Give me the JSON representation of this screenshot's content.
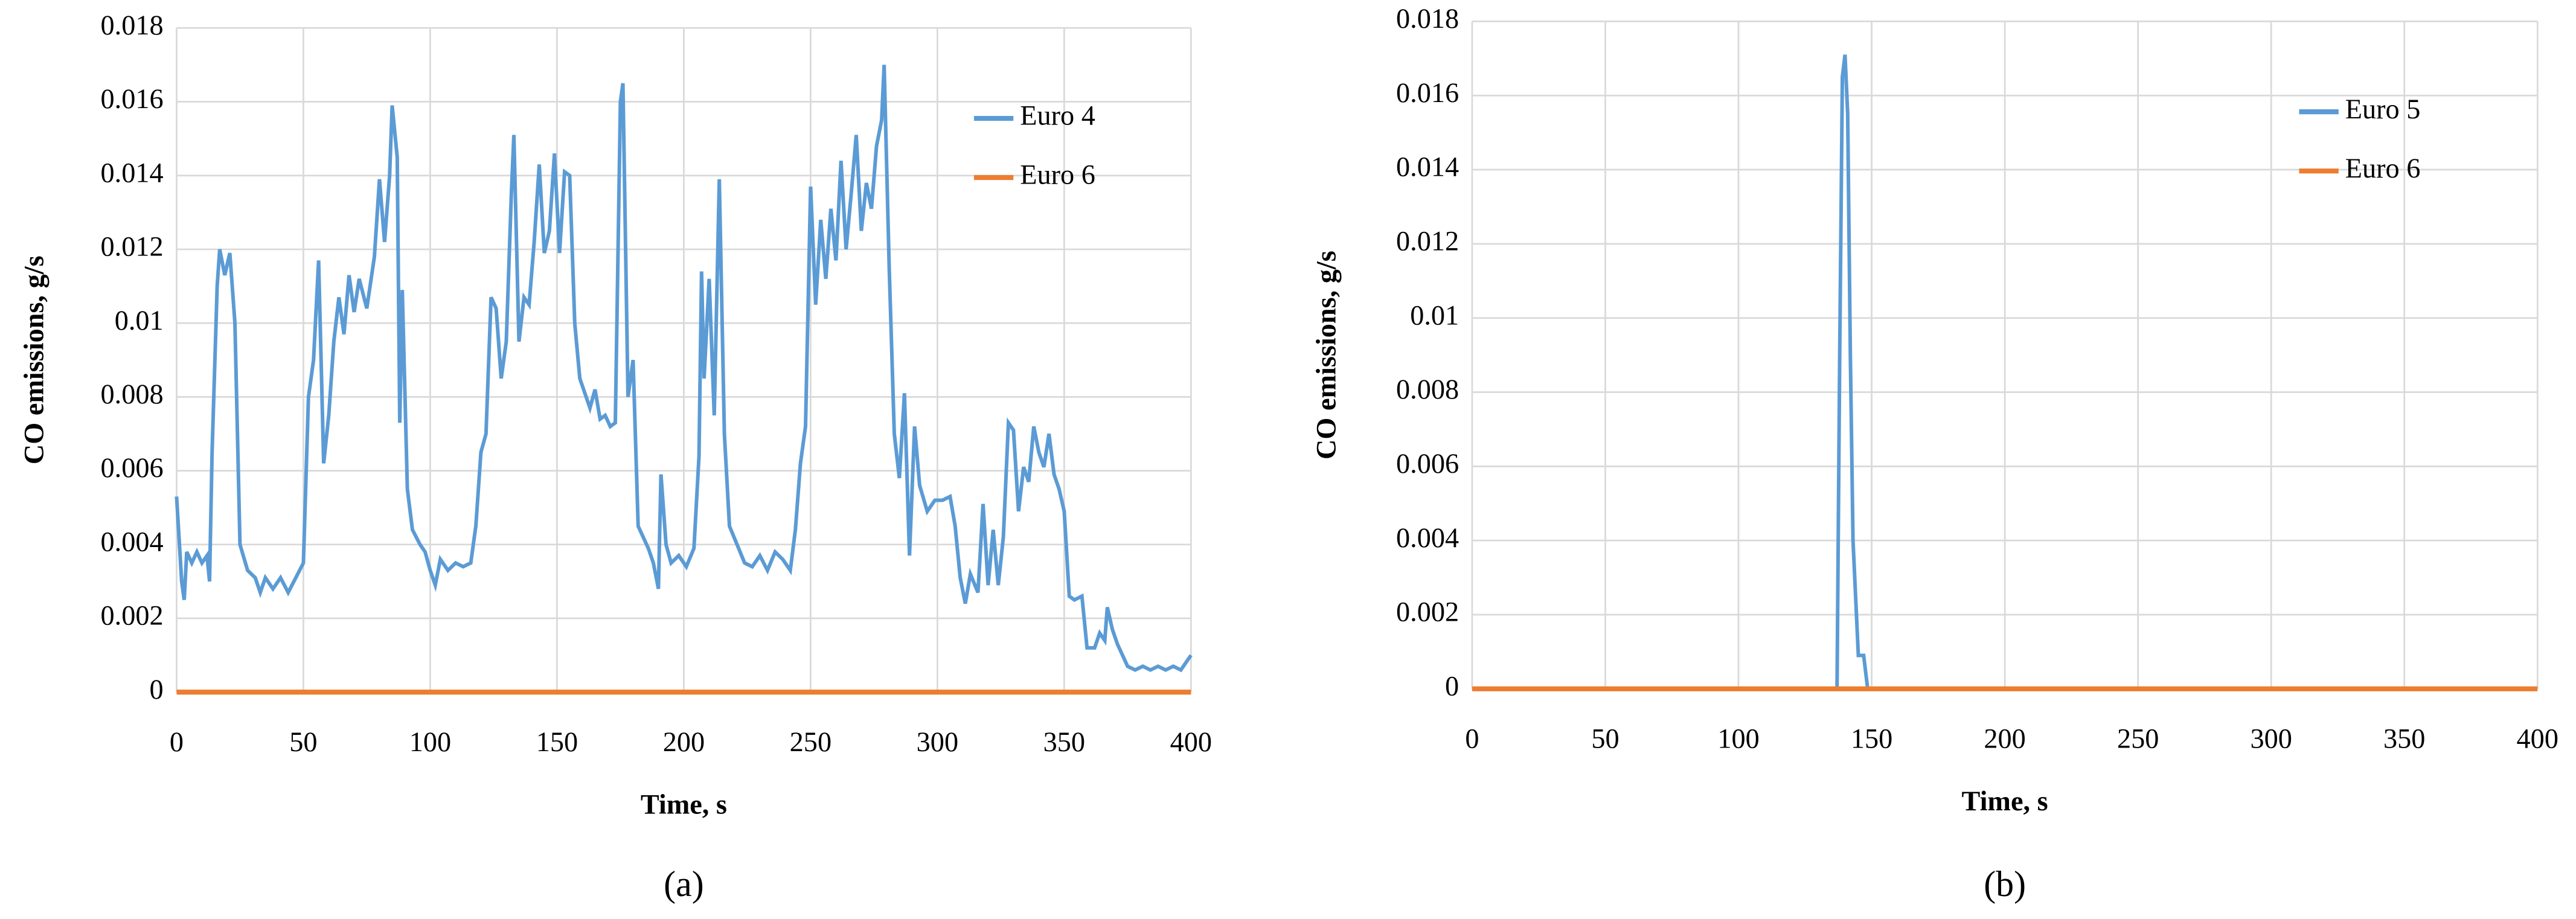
{
  "chart_data": [
    {
      "type": "line",
      "caption": "(a)",
      "xlabel": "Time, s",
      "ylabel": "CO emissions, g/s",
      "xlim": [
        0,
        400
      ],
      "xticks": [
        0,
        50,
        100,
        150,
        200,
        250,
        300,
        350,
        400
      ],
      "ylim": [
        0,
        0.018
      ],
      "yticks": [
        0,
        0.002,
        0.004,
        0.006,
        0.008,
        0.01,
        0.012,
        0.014,
        0.016,
        0.018
      ],
      "grid": true,
      "legend": "top-right",
      "series": [
        {
          "name": "Euro 4",
          "color": "#5b9bd5",
          "x": [
            0,
            2,
            3,
            4,
            6,
            8,
            10,
            12,
            13,
            14,
            16,
            17,
            19,
            21,
            23,
            25,
            28,
            31,
            33,
            35,
            38,
            41,
            44,
            47,
            50,
            52,
            54,
            56,
            58,
            60,
            62,
            64,
            66,
            68,
            70,
            72,
            75,
            78,
            80,
            82,
            84,
            85,
            87,
            88,
            89,
            91,
            93,
            96,
            98,
            100,
            102,
            104,
            107,
            110,
            113,
            116,
            118,
            120,
            122,
            124,
            126,
            128,
            130,
            132,
            133,
            135,
            137,
            139,
            141,
            143,
            145,
            147,
            149,
            151,
            153,
            155,
            157,
            159,
            161,
            163,
            165,
            167,
            169,
            171,
            173,
            175,
            176,
            178,
            180,
            182,
            184,
            186,
            188,
            190,
            191,
            193,
            195,
            198,
            201,
            204,
            206,
            207,
            208,
            210,
            212,
            214,
            216,
            218,
            221,
            224,
            227,
            230,
            233,
            236,
            239,
            242,
            244,
            246,
            248,
            250,
            252,
            254,
            256,
            258,
            260,
            262,
            264,
            266,
            268,
            270,
            272,
            274,
            276,
            278,
            279,
            281,
            283,
            285,
            287,
            289,
            291,
            293,
            296,
            299,
            302,
            305,
            307,
            309,
            311,
            313,
            316,
            318,
            320,
            322,
            324,
            326,
            328,
            330,
            332,
            334,
            336,
            338,
            340,
            342,
            344,
            346,
            348,
            350,
            352,
            354,
            357,
            359,
            362,
            364,
            366,
            367,
            369,
            371,
            373,
            375,
            378,
            381,
            384,
            387,
            390,
            393,
            396,
            398,
            400
          ],
          "values": [
            0.0053,
            0.003,
            0.0025,
            0.0038,
            0.0035,
            0.0038,
            0.0035,
            0.0037,
            0.003,
            0.0065,
            0.011,
            0.012,
            0.0113,
            0.0119,
            0.01,
            0.004,
            0.0033,
            0.0031,
            0.0027,
            0.0031,
            0.0028,
            0.0031,
            0.0027,
            0.0031,
            0.0035,
            0.008,
            0.009,
            0.0117,
            0.0062,
            0.0075,
            0.0095,
            0.0107,
            0.0097,
            0.0113,
            0.0103,
            0.0112,
            0.0104,
            0.0118,
            0.0139,
            0.0122,
            0.014,
            0.0159,
            0.0145,
            0.0073,
            0.0109,
            0.0055,
            0.0044,
            0.004,
            0.0038,
            0.0033,
            0.0029,
            0.0036,
            0.0033,
            0.0035,
            0.0034,
            0.0035,
            0.0045,
            0.0065,
            0.007,
            0.0107,
            0.0104,
            0.0085,
            0.0095,
            0.0135,
            0.0151,
            0.0095,
            0.0107,
            0.0105,
            0.0122,
            0.0143,
            0.0119,
            0.0125,
            0.0146,
            0.0119,
            0.0141,
            0.014,
            0.01,
            0.0085,
            0.0081,
            0.0077,
            0.0082,
            0.0074,
            0.0075,
            0.0072,
            0.0073,
            0.016,
            0.0165,
            0.008,
            0.009,
            0.0045,
            0.0042,
            0.0039,
            0.0035,
            0.0028,
            0.0059,
            0.004,
            0.0035,
            0.0037,
            0.0034,
            0.0039,
            0.0064,
            0.0114,
            0.0085,
            0.0112,
            0.0075,
            0.0139,
            0.007,
            0.0045,
            0.004,
            0.0035,
            0.0034,
            0.0037,
            0.0033,
            0.0038,
            0.0036,
            0.0033,
            0.0044,
            0.0062,
            0.0072,
            0.0137,
            0.0105,
            0.0128,
            0.0112,
            0.0131,
            0.0117,
            0.0144,
            0.012,
            0.0135,
            0.0151,
            0.0125,
            0.0138,
            0.0131,
            0.0148,
            0.0155,
            0.017,
            0.0115,
            0.007,
            0.0058,
            0.0081,
            0.0037,
            0.0072,
            0.0056,
            0.0049,
            0.0052,
            0.0052,
            0.0053,
            0.0045,
            0.0031,
            0.0024,
            0.0032,
            0.0027,
            0.0051,
            0.0029,
            0.0044,
            0.0029,
            0.0042,
            0.0073,
            0.0071,
            0.0049,
            0.0061,
            0.0057,
            0.0072,
            0.0065,
            0.0061,
            0.007,
            0.0059,
            0.0055,
            0.0049,
            0.0026,
            0.0025,
            0.0026,
            0.0012,
            0.0012,
            0.0016,
            0.0014,
            0.0023,
            0.0017,
            0.0013,
            0.001,
            0.0007,
            0.0006,
            0.0007,
            0.0006,
            0.0007,
            0.0006,
            0.0007,
            0.0006,
            0.0008,
            0.001
          ]
        },
        {
          "name": "Euro 6",
          "color": "#ed7d31",
          "x": [
            0,
            400
          ],
          "values": [
            0,
            0
          ]
        }
      ]
    },
    {
      "type": "line",
      "caption": "(b)",
      "xlabel": "Time, s",
      "ylabel": "CO emissions, g/s",
      "xlim": [
        0,
        400
      ],
      "xticks": [
        0,
        50,
        100,
        150,
        200,
        250,
        300,
        350,
        400
      ],
      "ylim": [
        0,
        0.018
      ],
      "yticks": [
        0,
        0.002,
        0.004,
        0.006,
        0.008,
        0.01,
        0.012,
        0.014,
        0.016,
        0.018
      ],
      "grid": true,
      "legend": "top-right",
      "series": [
        {
          "name": "Euro 5",
          "color": "#5b9bd5",
          "x": [
            0,
            137,
            138,
            139,
            140,
            141,
            142,
            143,
            145,
            147,
            148,
            148.5
          ],
          "values": [
            0,
            0,
            0.009,
            0.0165,
            0.0171,
            0.0155,
            0.009,
            0.004,
            0.0009,
            0.0009,
            0.0003,
            0
          ]
        },
        {
          "name": "Euro 6",
          "color": "#ed7d31",
          "x": [
            0,
            400
          ],
          "values": [
            0,
            0
          ]
        }
      ]
    }
  ]
}
